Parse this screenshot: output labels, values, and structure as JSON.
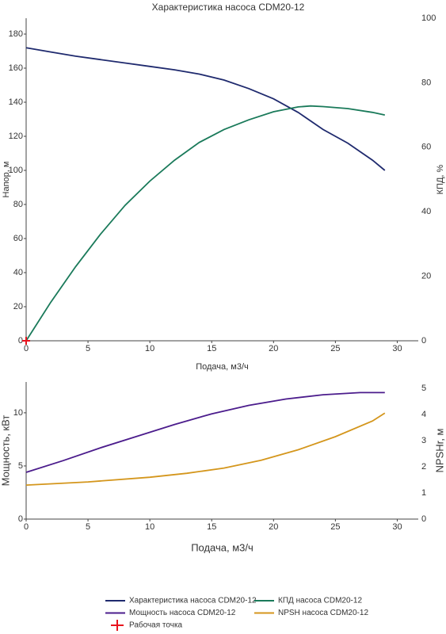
{
  "chart_data": [
    {
      "type": "line",
      "title": "Характеристика насоса CDM20-12",
      "x_label": "Подача, м3/ч",
      "y_label": "Напор, м",
      "y2_label": "КПД, %",
      "xlim": [
        0,
        31.7
      ],
      "xticks": [
        0,
        5,
        10,
        15,
        20,
        25,
        30
      ],
      "ylim": [
        0,
        189.3
      ],
      "yticks": [
        0,
        20,
        40,
        60,
        80,
        100,
        120,
        140,
        160,
        180
      ],
      "y2lim": [
        0,
        100
      ],
      "y2ticks": [
        0,
        20,
        40,
        60,
        80,
        100
      ],
      "series": [
        {
          "name": "Характеристика насоса CDM20-12",
          "color": "#1f2a6e",
          "x": [
            0,
            2,
            4,
            6,
            8,
            10,
            12,
            14,
            16,
            18,
            20,
            22,
            24,
            26,
            28,
            29
          ],
          "values": [
            172,
            169.5,
            167,
            165,
            163,
            161,
            159,
            156.5,
            153,
            148,
            142,
            134,
            124,
            116,
            106,
            100
          ]
        },
        {
          "name": "КПД насоса CDM20-12",
          "color": "#1a7a5a",
          "axis": "y2",
          "x": [
            0,
            2,
            4,
            6,
            8,
            10,
            12,
            14,
            16,
            18,
            20,
            22,
            23,
            24,
            26,
            28,
            29
          ],
          "values": [
            0,
            12,
            23,
            33,
            42,
            49.5,
            56,
            61.5,
            65.5,
            68.5,
            71,
            72.5,
            72.8,
            72.6,
            72,
            70.8,
            70
          ]
        },
        {
          "name": "Рабочая точка",
          "color": "#e8141e",
          "marker": "cross",
          "x": [
            0
          ],
          "values": [
            0
          ]
        }
      ]
    },
    {
      "type": "line",
      "x_label": "Подача, м3/ч",
      "y_label": "Мощность, кВт",
      "y2_label": "NPSHr, м",
      "xlim": [
        0,
        31.7
      ],
      "xticks": [
        0,
        5,
        10,
        15,
        20,
        25,
        30
      ],
      "ylim": [
        0,
        12.9
      ],
      "yticks": [
        0,
        5,
        10
      ],
      "y2lim": [
        0,
        5.24
      ],
      "y2ticks": [
        0,
        1,
        2,
        3,
        4,
        5
      ],
      "series": [
        {
          "name": "Мощность насоса CDM20-12",
          "color": "#4b1c8c",
          "x": [
            0,
            3,
            6,
            9,
            12,
            15,
            18,
            21,
            24,
            27,
            29
          ],
          "values": [
            4.4,
            5.5,
            6.7,
            7.8,
            8.9,
            9.9,
            10.7,
            11.3,
            11.7,
            11.9,
            11.9
          ]
        },
        {
          "name": "NPSH насоса CDM20-12",
          "color": "#d4961c",
          "axis": "y2",
          "x": [
            0,
            5,
            10,
            13,
            16,
            19,
            22,
            25,
            28,
            29
          ],
          "values": [
            1.3,
            1.42,
            1.6,
            1.75,
            1.95,
            2.25,
            2.65,
            3.15,
            3.75,
            4.05
          ]
        }
      ]
    }
  ]
}
